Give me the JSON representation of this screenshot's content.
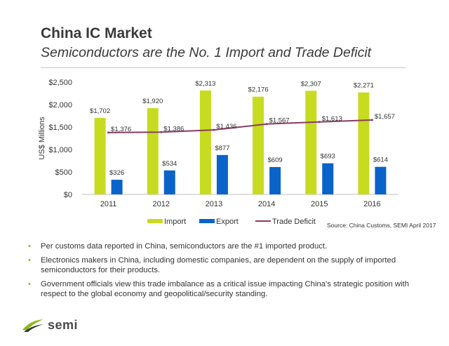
{
  "slide": {
    "title": "China IC Market",
    "subtitle": "Semiconductors are the No. 1 Import and Trade Deficit",
    "source": "Source: China Customs, SEMI April 2017",
    "bullets": [
      "Per customs data reported in China, semiconductors are the #1 imported product.",
      "Electronics makers in China, including domestic companies, are dependent on the supply of imported semiconductors for their products.",
      "Government officials view this trade imbalance as a critical issue impacting China's strategic position with respect to the global economy and geopolitical/security standing."
    ],
    "logo_text": "semi"
  },
  "colors": {
    "import": "#c7dc21",
    "export": "#0a63c9",
    "trade_deficit": "#8a3b63",
    "bullet": "#8dba1b"
  },
  "chart_data": {
    "type": "bar",
    "categories": [
      "2011",
      "2012",
      "2013",
      "2014",
      "2015",
      "2016"
    ],
    "series": [
      {
        "name": "Import",
        "type": "bar",
        "values": [
          1702,
          1920,
          2313,
          2176,
          2307,
          2271
        ],
        "labels": [
          "$1,702",
          "$1,920",
          "$2,313",
          "$2,176",
          "$2,307",
          "$2,271"
        ]
      },
      {
        "name": "Export",
        "type": "bar",
        "values": [
          326,
          534,
          877,
          609,
          693,
          614
        ],
        "labels": [
          "$326",
          "$534",
          "$877",
          "$609",
          "$693",
          "$614"
        ]
      },
      {
        "name": "Trade Deficit",
        "type": "line",
        "values": [
          1376,
          1386,
          1436,
          1567,
          1613,
          1657
        ],
        "labels": [
          "$1,376",
          "$1,386",
          "$1,436",
          "$1,567",
          "$1,613",
          "$1,657"
        ]
      }
    ],
    "ylabel": "US$ Millions",
    "ylim": [
      0,
      2500
    ],
    "yticks": [
      0,
      500,
      1000,
      1500,
      2000,
      2500
    ],
    "ytick_labels": [
      "$0",
      "$500",
      "$1,000",
      "$1,500",
      "$2,000",
      "$2,500"
    ],
    "legend": [
      "Import",
      "Export",
      "Trade Deficit"
    ],
    "legend_position": "bottom"
  }
}
